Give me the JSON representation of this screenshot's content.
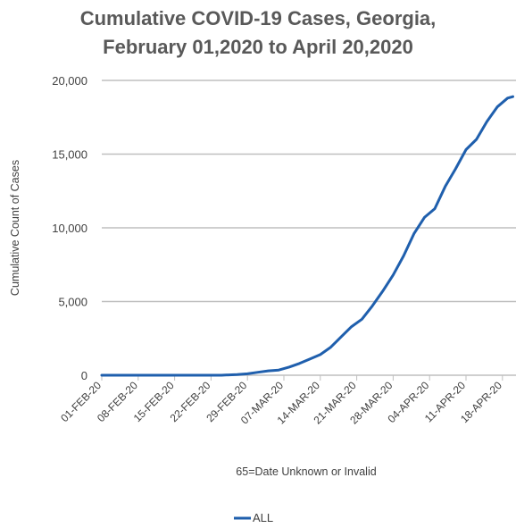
{
  "title_line1": "Cumulative COVID-19 Cases, Georgia,",
  "title_line2": "February 01,2020  to  April 20,2020",
  "chart_data": {
    "type": "line",
    "xlabel": "65=Date Unknown or Invalid",
    "ylabel": "Cumulative Count of Cases",
    "ylim": [
      0,
      20000
    ],
    "yticks": [
      "0",
      "5,000",
      "10,000",
      "15,000",
      "20,000"
    ],
    "ytick_values": [
      0,
      5000,
      10000,
      15000,
      20000
    ],
    "xticks": [
      "01-FEB-20",
      "08-FEB-20",
      "15-FEB-20",
      "22-FEB-20",
      "29-FEB-20",
      "07-MAR-20",
      "14-MAR-20",
      "21-MAR-20",
      "28-MAR-20",
      "04-APR-20",
      "11-APR-20",
      "18-APR-20"
    ],
    "grid": "horizontal",
    "legend_position": "bottom",
    "colors": {
      "line": "#1f5fad",
      "grid": "#bfbfbf",
      "text": "#595959"
    },
    "series": [
      {
        "name": "ALL",
        "x": [
          "01-FEB-20",
          "05-FEB-20",
          "10-FEB-20",
          "15-FEB-20",
          "20-FEB-20",
          "24-FEB-20",
          "27-FEB-20",
          "29-FEB-20",
          "02-MAR-20",
          "04-MAR-20",
          "06-MAR-20",
          "08-MAR-20",
          "10-MAR-20",
          "12-MAR-20",
          "14-MAR-20",
          "16-MAR-20",
          "18-MAR-20",
          "20-MAR-20",
          "22-MAR-20",
          "24-MAR-20",
          "26-MAR-20",
          "28-MAR-20",
          "30-MAR-20",
          "01-APR-20",
          "03-APR-20",
          "05-APR-20",
          "07-APR-20",
          "09-APR-20",
          "11-APR-20",
          "13-APR-20",
          "15-APR-20",
          "17-APR-20",
          "19-APR-20",
          "20-APR-20"
        ],
        "values": [
          0,
          0,
          0,
          0,
          0,
          0,
          50,
          100,
          200,
          300,
          350,
          550,
          800,
          1100,
          1400,
          1900,
          2600,
          3300,
          3800,
          4700,
          5700,
          6800,
          8100,
          9600,
          10700,
          11300,
          12800,
          14000,
          15300,
          16000,
          17200,
          18200,
          18800,
          18900
        ]
      }
    ]
  }
}
